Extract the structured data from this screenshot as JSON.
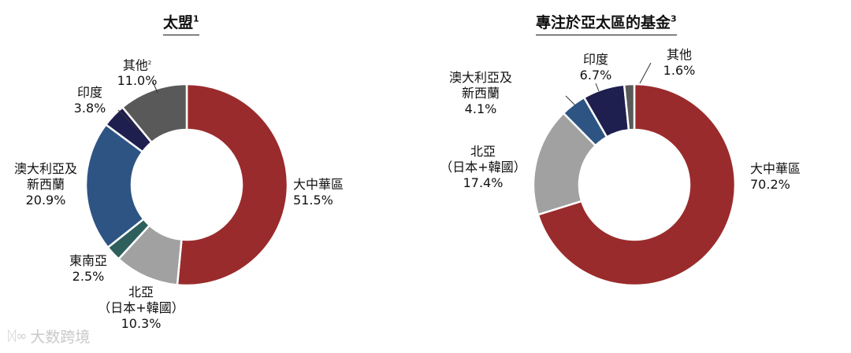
{
  "chart_data": [
    {
      "type": "pie",
      "donut": true,
      "title": "太盟",
      "title_note": "1",
      "slices": [
        {
          "key": "greater-china",
          "name": "大中華區",
          "value": 51.5,
          "label": "51.5%",
          "color": "#9a2b2c"
        },
        {
          "key": "north-asia",
          "name": "北亞",
          "sub": "（日本+韓國）",
          "value": 10.3,
          "label": "10.3%",
          "color": "#a1a1a1"
        },
        {
          "key": "southeast-asia",
          "name": "東南亞",
          "value": 2.5,
          "label": "2.5%",
          "color": "#2f5f5c"
        },
        {
          "key": "australia-nz",
          "name": "澳大利亞及",
          "sub": "新西蘭",
          "value": 20.9,
          "label": "20.9%",
          "color": "#2e5483"
        },
        {
          "key": "india",
          "name": "印度",
          "value": 3.8,
          "label": "3.8%",
          "color": "#1e1f4e"
        },
        {
          "key": "others",
          "name": "其他",
          "note": "2",
          "value": 11.0,
          "label": "11.0%",
          "color": "#595959"
        }
      ]
    },
    {
      "type": "pie",
      "donut": true,
      "title": "專注於亞太區的基金",
      "title_note": "3",
      "slices": [
        {
          "key": "greater-china",
          "name": "大中華區",
          "value": 70.2,
          "label": "70.2%",
          "color": "#9a2b2c"
        },
        {
          "key": "north-asia",
          "name": "北亞",
          "sub": "（日本+韓國）",
          "value": 17.4,
          "label": "17.4%",
          "color": "#a1a1a1"
        },
        {
          "key": "australia-nz",
          "name": "澳大利亞及",
          "sub": "新西蘭",
          "value": 4.1,
          "label": "4.1%",
          "color": "#2e5483"
        },
        {
          "key": "india",
          "name": "印度",
          "value": 6.7,
          "label": "6.7%",
          "color": "#1e1f4e"
        },
        {
          "key": "others",
          "name": "其他",
          "value": 1.6,
          "label": "1.6%",
          "color": "#595959"
        }
      ]
    }
  ],
  "watermark": {
    "text": "大数跨境"
  }
}
